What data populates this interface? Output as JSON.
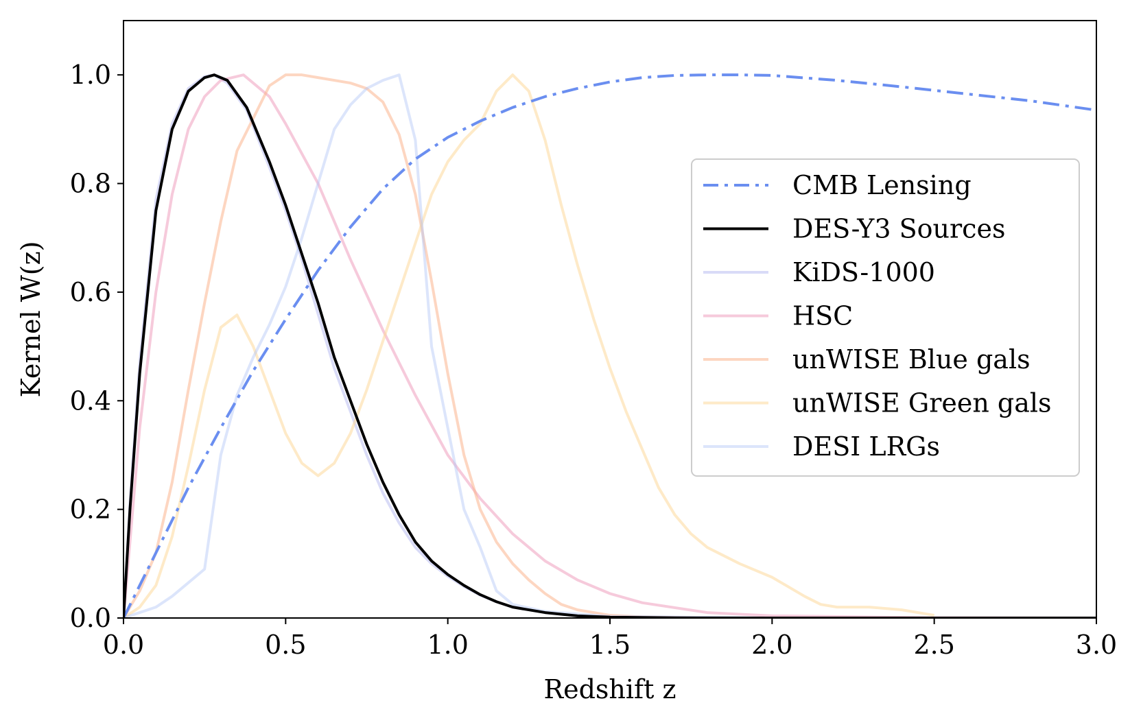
{
  "chart_data": {
    "type": "line",
    "title": "",
    "xlabel": "Redshift z",
    "ylabel": "Kernel W(z)",
    "xlim": [
      0.0,
      3.0
    ],
    "ylim": [
      0.0,
      1.1
    ],
    "xticks": [
      0.0,
      0.5,
      1.0,
      1.5,
      2.0,
      2.5,
      3.0
    ],
    "xtick_labels": [
      "0.0",
      "0.5",
      "1.0",
      "1.5",
      "2.0",
      "2.5",
      "3.0"
    ],
    "yticks": [
      0.0,
      0.2,
      0.4,
      0.6,
      0.8,
      1.0
    ],
    "ytick_labels": [
      "0.0",
      "0.2",
      "0.4",
      "0.6",
      "0.8",
      "1.0"
    ],
    "grid": false,
    "legend_position": "center-right",
    "series": [
      {
        "name": "CMB Lensing",
        "color": "#6a8ef0",
        "dash": "dash-dot",
        "opacity": 1.0,
        "x": [
          0.0,
          0.1,
          0.2,
          0.3,
          0.4,
          0.5,
          0.6,
          0.7,
          0.8,
          0.9,
          1.0,
          1.1,
          1.2,
          1.3,
          1.4,
          1.5,
          1.6,
          1.7,
          1.8,
          1.9,
          2.0,
          2.2,
          2.4,
          2.6,
          2.8,
          3.0
        ],
        "y": [
          0.0,
          0.12,
          0.24,
          0.35,
          0.455,
          0.55,
          0.64,
          0.72,
          0.79,
          0.845,
          0.885,
          0.915,
          0.94,
          0.96,
          0.975,
          0.987,
          0.995,
          0.999,
          1.0,
          1.0,
          0.999,
          0.99,
          0.978,
          0.965,
          0.952,
          0.935
        ]
      },
      {
        "name": "DES-Y3 Sources",
        "color": "#000000",
        "dash": "solid",
        "opacity": 1.0,
        "x": [
          0.0,
          0.02,
          0.05,
          0.1,
          0.15,
          0.2,
          0.25,
          0.28,
          0.32,
          0.38,
          0.45,
          0.5,
          0.55,
          0.6,
          0.65,
          0.7,
          0.75,
          0.8,
          0.85,
          0.9,
          0.95,
          1.0,
          1.05,
          1.1,
          1.15,
          1.2,
          1.3,
          1.4,
          1.5,
          1.7,
          2.0,
          2.5,
          3.0
        ],
        "y": [
          0.0,
          0.2,
          0.45,
          0.75,
          0.9,
          0.97,
          0.995,
          1.0,
          0.99,
          0.94,
          0.84,
          0.76,
          0.67,
          0.58,
          0.48,
          0.4,
          0.32,
          0.25,
          0.19,
          0.14,
          0.105,
          0.08,
          0.06,
          0.043,
          0.03,
          0.02,
          0.01,
          0.004,
          0.0015,
          0.0003,
          0.0,
          0.0,
          0.0
        ]
      },
      {
        "name": "KiDS-1000",
        "color": "#b4b8f0",
        "dash": "solid",
        "opacity": 0.5,
        "x": [
          0.0,
          0.02,
          0.05,
          0.1,
          0.15,
          0.2,
          0.25,
          0.28,
          0.32,
          0.38,
          0.45,
          0.5,
          0.55,
          0.6,
          0.65,
          0.7,
          0.75,
          0.8,
          0.85,
          0.9,
          0.95,
          1.0,
          1.05,
          1.1,
          1.15,
          1.2,
          1.3,
          1.4,
          1.5,
          1.7,
          2.0,
          2.5,
          3.0
        ],
        "y": [
          0.0,
          0.21,
          0.47,
          0.77,
          0.91,
          0.975,
          0.997,
          1.0,
          0.985,
          0.935,
          0.83,
          0.75,
          0.66,
          0.56,
          0.46,
          0.38,
          0.3,
          0.23,
          0.175,
          0.13,
          0.1,
          0.077,
          0.058,
          0.042,
          0.03,
          0.02,
          0.01,
          0.004,
          0.0015,
          0.0003,
          0.0,
          0.0,
          0.0
        ]
      },
      {
        "name": "HSC",
        "color": "#ee9fbd",
        "dash": "solid",
        "opacity": 0.55,
        "x": [
          0.0,
          0.05,
          0.1,
          0.15,
          0.2,
          0.25,
          0.3,
          0.37,
          0.45,
          0.5,
          0.6,
          0.7,
          0.8,
          0.9,
          1.0,
          1.1,
          1.2,
          1.3,
          1.4,
          1.5,
          1.6,
          1.8,
          2.0,
          2.5,
          3.0
        ],
        "y": [
          0.0,
          0.35,
          0.6,
          0.78,
          0.9,
          0.96,
          0.99,
          1.0,
          0.96,
          0.91,
          0.8,
          0.66,
          0.53,
          0.41,
          0.3,
          0.22,
          0.155,
          0.105,
          0.07,
          0.045,
          0.028,
          0.01,
          0.004,
          0.0005,
          0.0
        ]
      },
      {
        "name": "unWISE Blue gals",
        "color": "#fcb58e",
        "dash": "solid",
        "opacity": 0.55,
        "x": [
          0.0,
          0.05,
          0.1,
          0.15,
          0.2,
          0.25,
          0.3,
          0.35,
          0.45,
          0.5,
          0.55,
          0.6,
          0.7,
          0.75,
          0.8,
          0.85,
          0.9,
          0.95,
          1.0,
          1.05,
          1.1,
          1.15,
          1.2,
          1.25,
          1.3,
          1.35,
          1.4,
          1.5,
          1.6,
          1.8,
          2.0,
          2.5,
          3.0
        ],
        "y": [
          0.0,
          0.05,
          0.12,
          0.25,
          0.42,
          0.58,
          0.73,
          0.86,
          0.98,
          1.0,
          1.0,
          0.995,
          0.985,
          0.975,
          0.95,
          0.89,
          0.78,
          0.62,
          0.45,
          0.3,
          0.2,
          0.14,
          0.1,
          0.07,
          0.045,
          0.025,
          0.015,
          0.005,
          0.002,
          0.0,
          0.0,
          0.0,
          0.0
        ]
      },
      {
        "name": "unWISE Green gals",
        "color": "#fdd89a",
        "dash": "solid",
        "opacity": 0.55,
        "x": [
          0.0,
          0.05,
          0.1,
          0.15,
          0.2,
          0.25,
          0.3,
          0.35,
          0.4,
          0.45,
          0.5,
          0.55,
          0.6,
          0.65,
          0.7,
          0.75,
          0.8,
          0.85,
          0.9,
          0.95,
          1.0,
          1.05,
          1.1,
          1.15,
          1.2,
          1.25,
          1.3,
          1.35,
          1.4,
          1.45,
          1.5,
          1.55,
          1.6,
          1.65,
          1.7,
          1.75,
          1.8,
          1.9,
          2.0,
          2.1,
          2.15,
          2.2,
          2.3,
          2.4,
          2.5
        ],
        "y": [
          0.0,
          0.02,
          0.06,
          0.15,
          0.28,
          0.42,
          0.535,
          0.558,
          0.5,
          0.42,
          0.34,
          0.285,
          0.262,
          0.285,
          0.34,
          0.42,
          0.51,
          0.6,
          0.69,
          0.78,
          0.84,
          0.88,
          0.91,
          0.97,
          1.0,
          0.97,
          0.88,
          0.76,
          0.65,
          0.55,
          0.46,
          0.38,
          0.31,
          0.24,
          0.19,
          0.155,
          0.13,
          0.1,
          0.075,
          0.04,
          0.025,
          0.02,
          0.02,
          0.015,
          0.005
        ]
      },
      {
        "name": "DESI LRGs",
        "color": "#b2c6f7",
        "dash": "solid",
        "opacity": 0.45,
        "x": [
          0.0,
          0.05,
          0.1,
          0.15,
          0.2,
          0.25,
          0.3,
          0.35,
          0.4,
          0.45,
          0.5,
          0.55,
          0.6,
          0.65,
          0.7,
          0.75,
          0.8,
          0.85,
          0.9,
          0.95,
          1.0,
          1.05,
          1.1,
          1.15,
          1.2,
          1.3,
          1.5,
          2.0,
          3.0
        ],
        "y": [
          0.0,
          0.01,
          0.02,
          0.04,
          0.065,
          0.09,
          0.3,
          0.41,
          0.48,
          0.54,
          0.61,
          0.7,
          0.8,
          0.9,
          0.945,
          0.975,
          0.99,
          1.0,
          0.88,
          0.5,
          0.35,
          0.2,
          0.13,
          0.05,
          0.025,
          0.012,
          0.003,
          0.0,
          0.0
        ]
      }
    ]
  }
}
